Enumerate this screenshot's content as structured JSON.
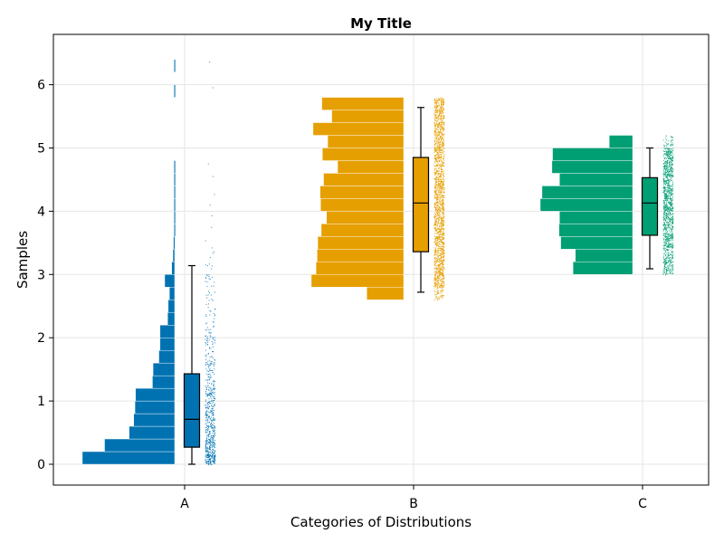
{
  "chart_data": {
    "type": "raincloud",
    "title": "My Title",
    "xlabel": "Categories of Distributions",
    "ylabel": "Samples",
    "ylim": [
      -0.35,
      6.8
    ],
    "yticks": [
      0,
      1,
      2,
      3,
      4,
      5,
      6
    ],
    "grid": true,
    "categories": [
      "A",
      "B",
      "C"
    ],
    "colors": {
      "A": "#0072b2",
      "B": "#e69f00",
      "C": "#009e73"
    },
    "histograms": [
      {
        "category": "A",
        "bin_width": 0.2,
        "bins": [
          {
            "start": 0.0,
            "count": 158
          },
          {
            "start": 0.2,
            "count": 120
          },
          {
            "start": 0.4,
            "count": 78
          },
          {
            "start": 0.6,
            "count": 70
          },
          {
            "start": 0.8,
            "count": 68
          },
          {
            "start": 1.0,
            "count": 67
          },
          {
            "start": 1.2,
            "count": 38
          },
          {
            "start": 1.4,
            "count": 37
          },
          {
            "start": 1.6,
            "count": 27
          },
          {
            "start": 1.8,
            "count": 25
          },
          {
            "start": 2.0,
            "count": 25
          },
          {
            "start": 2.2,
            "count": 12
          },
          {
            "start": 2.4,
            "count": 11
          },
          {
            "start": 2.6,
            "count": 9
          },
          {
            "start": 2.8,
            "count": 17
          },
          {
            "start": 3.0,
            "count": 5
          },
          {
            "start": 3.2,
            "count": 3
          },
          {
            "start": 3.4,
            "count": 2
          },
          {
            "start": 3.6,
            "count": 1
          },
          {
            "start": 3.8,
            "count": 1
          },
          {
            "start": 4.0,
            "count": 1
          },
          {
            "start": 4.2,
            "count": 1
          },
          {
            "start": 4.4,
            "count": 1
          },
          {
            "start": 4.6,
            "count": 1
          },
          {
            "start": 5.8,
            "count": 1
          },
          {
            "start": 6.2,
            "count": 1
          }
        ]
      },
      {
        "category": "B",
        "bin_width": 0.2,
        "bins": [
          {
            "start": 2.6,
            "count": 63
          },
          {
            "start": 2.8,
            "count": 158
          },
          {
            "start": 3.0,
            "count": 150
          },
          {
            "start": 3.2,
            "count": 148
          },
          {
            "start": 3.4,
            "count": 147
          },
          {
            "start": 3.6,
            "count": 141
          },
          {
            "start": 3.8,
            "count": 132
          },
          {
            "start": 4.0,
            "count": 142
          },
          {
            "start": 4.2,
            "count": 143
          },
          {
            "start": 4.4,
            "count": 137
          },
          {
            "start": 4.6,
            "count": 113
          },
          {
            "start": 4.8,
            "count": 139
          },
          {
            "start": 5.0,
            "count": 130
          },
          {
            "start": 5.2,
            "count": 155
          },
          {
            "start": 5.4,
            "count": 123
          },
          {
            "start": 5.6,
            "count": 140
          }
        ]
      },
      {
        "category": "C",
        "bin_width": 0.2,
        "bins": [
          {
            "start": 3.0,
            "count": 102
          },
          {
            "start": 3.2,
            "count": 98
          },
          {
            "start": 3.4,
            "count": 123
          },
          {
            "start": 3.6,
            "count": 126
          },
          {
            "start": 3.8,
            "count": 125
          },
          {
            "start": 4.0,
            "count": 158
          },
          {
            "start": 4.2,
            "count": 155
          },
          {
            "start": 4.4,
            "count": 125
          },
          {
            "start": 4.6,
            "count": 138
          },
          {
            "start": 4.8,
            "count": 137
          },
          {
            "start": 5.0,
            "count": 40
          }
        ]
      }
    ],
    "boxplots": [
      {
        "category": "A",
        "whisker_low": 0.0,
        "q1": 0.27,
        "median": 0.71,
        "q3": 1.43,
        "whisker_high": 3.14
      },
      {
        "category": "B",
        "whisker_low": 2.72,
        "q1": 3.36,
        "median": 4.13,
        "q3": 4.85,
        "whisker_high": 5.64
      },
      {
        "category": "C",
        "whisker_low": 3.09,
        "q1": 3.62,
        "median": 4.13,
        "q3": 4.53,
        "whisker_high": 5.0
      }
    ],
    "scatter_ranges": [
      {
        "category": "A",
        "min": 0.0,
        "max": 6.5
      },
      {
        "category": "B",
        "min": 2.7,
        "max": 5.65
      },
      {
        "category": "C",
        "min": 3.05,
        "max": 5.0
      }
    ]
  }
}
